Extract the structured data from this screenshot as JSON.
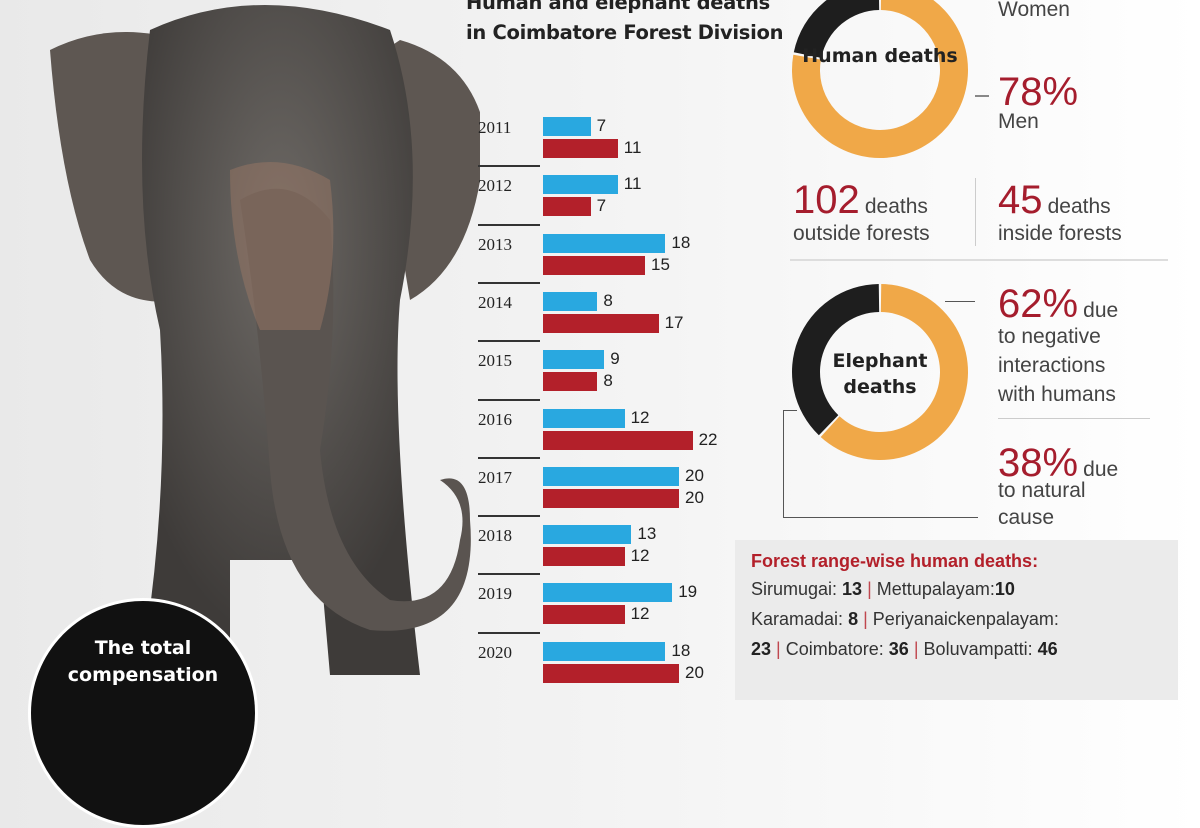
{
  "title": "Human and elephant deaths in Coimbatore Forest Division",
  "chart_data": {
    "type": "bar",
    "orientation": "horizontal",
    "categories": [
      "2011",
      "2012",
      "2013",
      "2014",
      "2015",
      "2016",
      "2017",
      "2018",
      "2019",
      "2020"
    ],
    "series": [
      {
        "color": "#29a8e0",
        "values": [
          7,
          11,
          18,
          8,
          9,
          12,
          20,
          13,
          19,
          18
        ]
      },
      {
        "color": "#b3202a",
        "values": [
          11,
          7,
          15,
          17,
          8,
          22,
          20,
          12,
          12,
          20
        ]
      }
    ]
  },
  "human_donut": {
    "label": "Human deaths",
    "women_label": "Women",
    "men_pct": "78%",
    "men_label": "Men",
    "men_value": 78,
    "women_value": 22,
    "colors": {
      "men": "#f0a848",
      "women": "#1e1e1e"
    }
  },
  "outside": {
    "num": "102",
    "unit": "deaths",
    "desc": "outside forests"
  },
  "inside": {
    "num": "45",
    "unit": "deaths",
    "desc": "inside forests"
  },
  "elephant_donut": {
    "label": "Elephant deaths",
    "human_pct": "62%",
    "human_value": 62,
    "human_l1": "due",
    "human_l2": "to negative",
    "human_l3": "interactions",
    "human_l4": "with humans",
    "natural_pct": "38%",
    "natural_value": 38,
    "natural_l1": "due",
    "natural_l2": "to natural",
    "natural_l3": "cause"
  },
  "ranges": {
    "title": "Forest range-wise human deaths:",
    "items": [
      {
        "name": "Sirumugai: ",
        "value": "13"
      },
      {
        "name": "Mettupalayam:",
        "value": "10"
      },
      {
        "name": "Karamadai: ",
        "value": "8"
      },
      {
        "name": "Periyanaickenpalayam:",
        "value": ""
      },
      {
        "name": "",
        "value": "23"
      },
      {
        "name": "Coimbatore: ",
        "value": "36"
      },
      {
        "name": "Boluvampatti: ",
        "value": "46"
      }
    ]
  },
  "circle": {
    "l1": "The total",
    "l2": "compensation"
  }
}
